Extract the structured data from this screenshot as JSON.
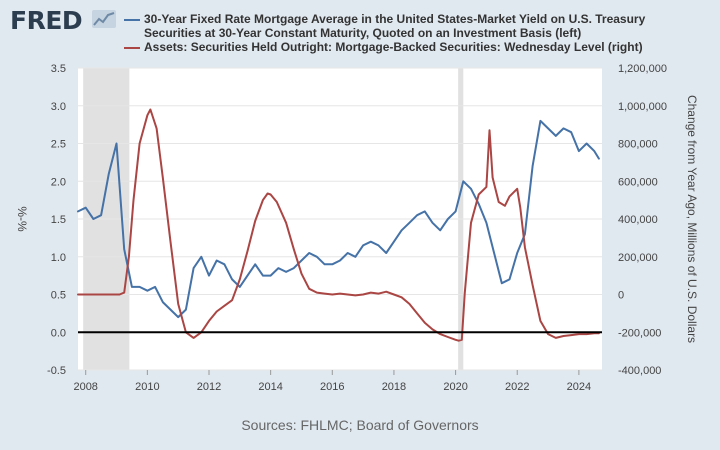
{
  "header": {
    "logo_text": "FRED",
    "logo_icon": "trend-line-icon"
  },
  "legend": {
    "items": [
      {
        "label": "30-Year Fixed Rate Mortgage Average in the United States-Market Yield on U.S. Treasury Securities at 30-Year Constant Maturity, Quoted on an Investment Basis (left)",
        "color": "#4572a7"
      },
      {
        "label": "Assets: Securities Held Outright: Mortgage-Backed Securities: Wednesday Level (right)",
        "color": "#aa4643"
      }
    ]
  },
  "footer": {
    "sources": "Sources: FHLMC; Board of Governors"
  },
  "chart_data": {
    "type": "line",
    "title": "",
    "xlabel": "",
    "ylabel_left": "%-%",
    "ylabel_right": "Change from Year Ago, Millions of U.S. Dollars",
    "xlim": [
      2007.75,
      2024.75
    ],
    "ylim_left": [
      -0.5,
      3.5
    ],
    "ylim_right": [
      -400000,
      1200000
    ],
    "x_ticks": [
      "2008",
      "2010",
      "2012",
      "2014",
      "2016",
      "2018",
      "2020",
      "2022",
      "2024"
    ],
    "y_ticks_left": [
      "-0.5",
      "0.0",
      "0.5",
      "1.0",
      "1.5",
      "2.0",
      "2.5",
      "3.0",
      "3.5"
    ],
    "y_ticks_right": [
      "-400,000",
      "-200,000",
      "0",
      "200,000",
      "400,000",
      "600,000",
      "800,000",
      "1,000,000",
      "1,200,000"
    ],
    "grid": "horizontal",
    "recessions": [
      [
        2007.917,
        2009.417
      ],
      [
        2020.083,
        2020.25
      ]
    ],
    "zero_line_left": 0,
    "series": [
      {
        "name": "30-Year Fixed Rate Mortgage Average in the United States-Market Yield on U.S. Treasury Securities at 30-Year Constant Maturity, Quoted on an Investment Basis (left)",
        "axis": "left",
        "color": "#4572a7",
        "x": [
          2007.75,
          2008.0,
          2008.25,
          2008.5,
          2008.75,
          2009.0,
          2009.25,
          2009.5,
          2009.75,
          2010.0,
          2010.25,
          2010.5,
          2010.75,
          2011.0,
          2011.25,
          2011.5,
          2011.75,
          2012.0,
          2012.25,
          2012.5,
          2012.75,
          2013.0,
          2013.25,
          2013.5,
          2013.75,
          2014.0,
          2014.25,
          2014.5,
          2014.75,
          2015.0,
          2015.25,
          2015.5,
          2015.75,
          2016.0,
          2016.25,
          2016.5,
          2016.75,
          2017.0,
          2017.25,
          2017.5,
          2017.75,
          2018.0,
          2018.25,
          2018.5,
          2018.75,
          2019.0,
          2019.25,
          2019.5,
          2019.75,
          2020.0,
          2020.25,
          2020.5,
          2020.75,
          2021.0,
          2021.25,
          2021.5,
          2021.75,
          2022.0,
          2022.25,
          2022.5,
          2022.75,
          2023.0,
          2023.25,
          2023.5,
          2023.75,
          2024.0,
          2024.25,
          2024.5,
          2024.65
        ],
        "y": [
          1.6,
          1.65,
          1.5,
          1.55,
          2.1,
          2.5,
          1.1,
          0.6,
          0.6,
          0.55,
          0.6,
          0.4,
          0.3,
          0.2,
          0.3,
          0.85,
          1.0,
          0.75,
          0.95,
          0.9,
          0.7,
          0.6,
          0.75,
          0.9,
          0.75,
          0.75,
          0.85,
          0.8,
          0.85,
          0.95,
          1.05,
          1.0,
          0.9,
          0.9,
          0.95,
          1.05,
          1.0,
          1.15,
          1.2,
          1.15,
          1.05,
          1.2,
          1.35,
          1.45,
          1.55,
          1.6,
          1.45,
          1.35,
          1.5,
          1.6,
          2.0,
          1.9,
          1.7,
          1.45,
          1.05,
          0.65,
          0.7,
          1.05,
          1.3,
          2.2,
          2.8,
          2.7,
          2.6,
          2.7,
          2.65,
          2.4,
          2.5,
          2.4,
          2.3
        ]
      },
      {
        "name": "Assets: Securities Held Outright: Mortgage-Backed Securities: Wednesday Level (right)",
        "axis": "right",
        "color": "#aa4643",
        "x": [
          2007.75,
          2008.0,
          2008.5,
          2009.0,
          2009.1,
          2009.25,
          2009.4,
          2009.55,
          2009.75,
          2010.0,
          2010.1,
          2010.3,
          2010.5,
          2010.75,
          2011.0,
          2011.25,
          2011.5,
          2011.75,
          2012.0,
          2012.25,
          2012.5,
          2012.75,
          2013.0,
          2013.25,
          2013.5,
          2013.75,
          2013.9,
          2014.0,
          2014.2,
          2014.5,
          2014.75,
          2015.0,
          2015.25,
          2015.5,
          2015.75,
          2016.0,
          2016.25,
          2016.5,
          2016.75,
          2017.0,
          2017.25,
          2017.5,
          2017.75,
          2018.0,
          2018.25,
          2018.5,
          2018.75,
          2019.0,
          2019.25,
          2019.5,
          2019.75,
          2020.0,
          2020.1,
          2020.2,
          2020.3,
          2020.5,
          2020.75,
          2021.0,
          2021.1,
          2021.2,
          2021.4,
          2021.6,
          2021.75,
          2022.0,
          2022.1,
          2022.25,
          2022.5,
          2022.75,
          2023.0,
          2023.25,
          2023.5,
          2023.75,
          2024.0,
          2024.25,
          2024.5,
          2024.65
        ],
        "y": [
          0,
          0,
          0,
          0,
          0,
          10000,
          200000,
          500000,
          800000,
          950000,
          980000,
          880000,
          620000,
          280000,
          -50000,
          -200000,
          -230000,
          -200000,
          -140000,
          -90000,
          -60000,
          -30000,
          80000,
          230000,
          390000,
          500000,
          535000,
          530000,
          490000,
          380000,
          240000,
          110000,
          30000,
          10000,
          5000,
          0,
          5000,
          0,
          -5000,
          0,
          10000,
          5000,
          15000,
          0,
          -15000,
          -50000,
          -100000,
          -150000,
          -185000,
          -210000,
          -225000,
          -240000,
          -245000,
          -240000,
          10000,
          380000,
          530000,
          570000,
          870000,
          620000,
          490000,
          470000,
          520000,
          560000,
          460000,
          250000,
          50000,
          -140000,
          -210000,
          -230000,
          -220000,
          -215000,
          -210000,
          -210000,
          -205000,
          -205000
        ]
      }
    ]
  }
}
